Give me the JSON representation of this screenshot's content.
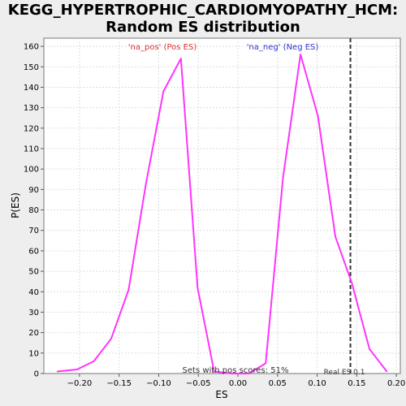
{
  "chart_data": {
    "type": "line",
    "title": "KEGG_HYPERTROPHIC_CARDIOMYOPATHY_HCM:",
    "subtitle": "Random ES distribution",
    "xlabel": "ES",
    "ylabel": "P(ES)",
    "xlim": [
      -0.245,
      0.205
    ],
    "ylim": [
      0,
      164
    ],
    "x_ticks": [
      -0.2,
      -0.15,
      -0.1,
      -0.05,
      0.0,
      0.05,
      0.1,
      0.15,
      0.2
    ],
    "x_tick_labels": [
      "−0.20",
      "−0.15",
      "−0.10",
      "−0.05",
      "0.00",
      "0.05",
      "0.10",
      "0.15",
      "0.20"
    ],
    "y_ticks": [
      0,
      10,
      20,
      30,
      40,
      50,
      60,
      70,
      80,
      90,
      100,
      110,
      120,
      130,
      140,
      150,
      160
    ],
    "grid": true,
    "series": [
      {
        "color": "#ff33ff",
        "x": [
          -0.228,
          -0.203,
          -0.182,
          -0.16,
          -0.138,
          -0.116,
          -0.094,
          -0.072,
          -0.051,
          -0.03,
          -0.008,
          0.014,
          0.035,
          0.057,
          0.079,
          0.101,
          0.123,
          0.144,
          0.166,
          0.188
        ],
        "y": [
          1,
          2,
          6,
          17,
          41,
          93,
          138,
          154,
          42,
          1,
          0,
          0,
          5,
          96,
          156,
          126,
          67,
          44,
          12,
          1
        ]
      }
    ],
    "reference_line": {
      "x": 0.142,
      "label": "Real ES 0.1",
      "color": "#333333"
    },
    "annotations": {
      "pos_label": "'na_pos' (Pos ES)",
      "neg_label": "'na_neg' (Neg ES)",
      "pos_color": "#dd3333",
      "neg_color": "#3333cc",
      "sets_text": "Sets with pos scores: 51%"
    }
  }
}
